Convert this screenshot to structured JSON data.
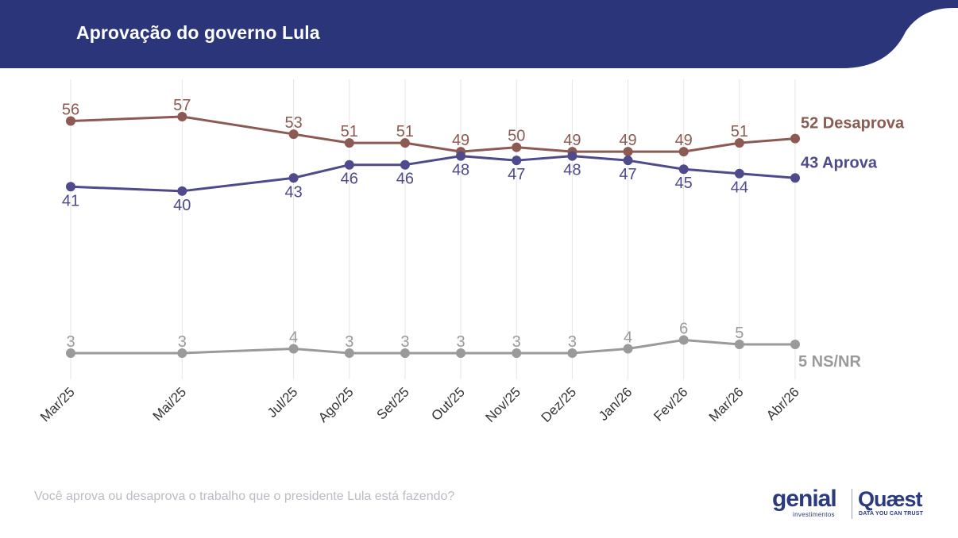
{
  "page": {
    "title": "Aprovação do governo Lula",
    "question": "Você aprova ou desaprova o trabalho que o presidente Lula está fazendo?",
    "header_color": "#2b357a"
  },
  "logos": {
    "genial_name": "genial",
    "genial_sub": "investimentos",
    "quaest_name": "Quæst",
    "quaest_tagline": "DATA YOU CAN TRUST"
  },
  "chart_data": {
    "type": "line",
    "title": "Aprovação do governo Lula",
    "x": [
      "Mar/25",
      "Mai/25",
      "Jul/25",
      "Ago/25",
      "Set/25",
      "Out/25",
      "Nov/25",
      "Dez/25",
      "Jan/26",
      "Fev/26",
      "Mar/26",
      "Abr/26"
    ],
    "x_months": [
      0,
      2,
      4,
      5,
      6,
      7,
      8,
      9,
      10,
      11,
      12,
      13
    ],
    "ylim": [
      3,
      57
    ],
    "grid": "vertical",
    "series": [
      {
        "name": "Desaprova",
        "color": "#8c5a52",
        "values": [
          56,
          57,
          53,
          51,
          51,
          49,
          50,
          49,
          49,
          49,
          51,
          52
        ],
        "end_label": "52 Desaprova",
        "label_position": "above"
      },
      {
        "name": "Aprova",
        "color": "#4e4a8c",
        "values": [
          41,
          40,
          43,
          46,
          46,
          48,
          47,
          48,
          47,
          45,
          44,
          43
        ],
        "end_label": "43 Aprova",
        "label_position": "below"
      },
      {
        "name": "NS/NR",
        "color": "#9a9a9a",
        "values": [
          3,
          3,
          4,
          3,
          3,
          3,
          3,
          3,
          4,
          6,
          5,
          5
        ],
        "end_label": "5 NS/NR",
        "label_position": "above"
      }
    ]
  }
}
